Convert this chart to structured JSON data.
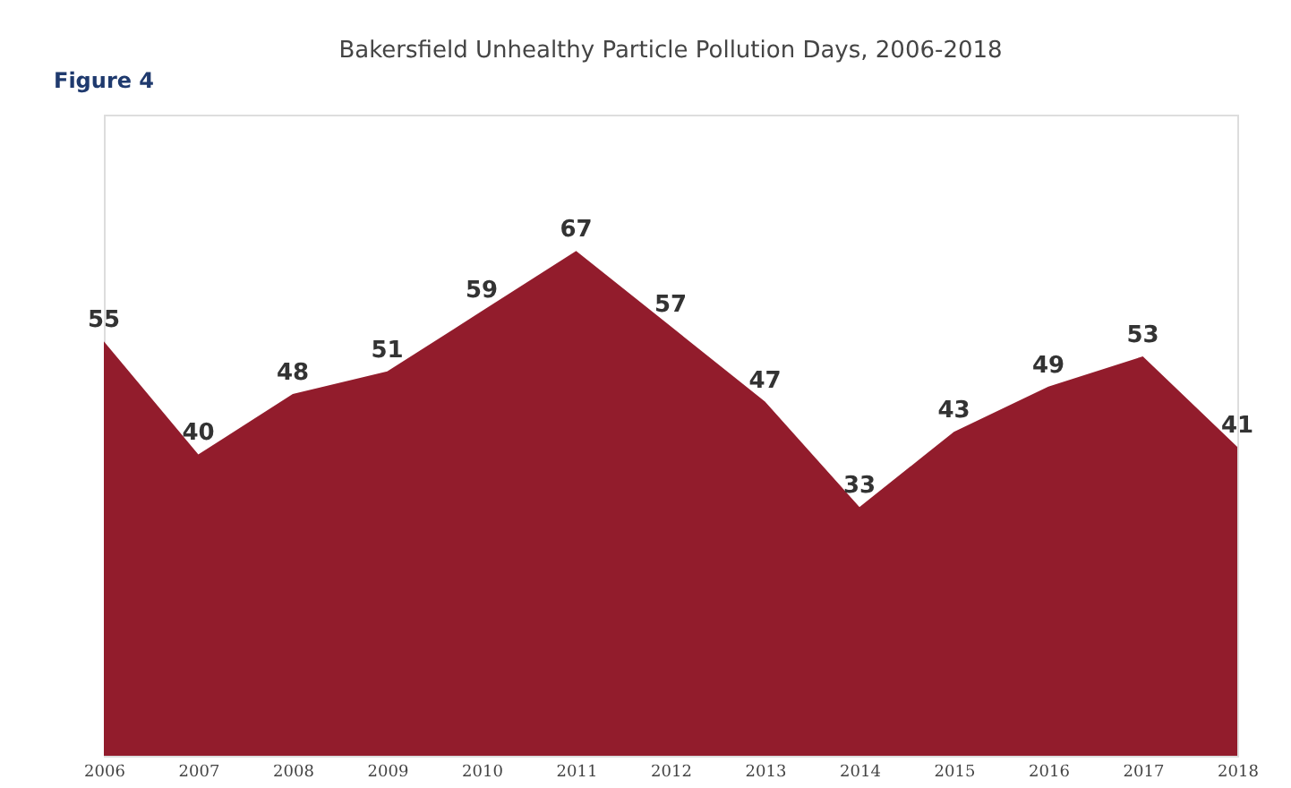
{
  "chart_data": {
    "type": "area",
    "title": "Bakersfield Unhealthy Particle Pollution Days, 2006-2018",
    "categories": [
      "2006",
      "2007",
      "2008",
      "2009",
      "2010",
      "2011",
      "2012",
      "2013",
      "2014",
      "2015",
      "2016",
      "2017",
      "2018"
    ],
    "series": [
      {
        "color": "#921c2c",
        "values": [
          55,
          40,
          48,
          51,
          59,
          67,
          57,
          47,
          33,
          43,
          49,
          53,
          41
        ]
      }
    ],
    "data_labels": true,
    "grid": false,
    "annotations": [
      "Figure 4"
    ]
  }
}
